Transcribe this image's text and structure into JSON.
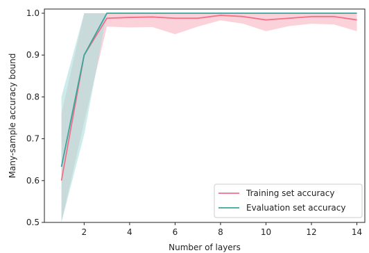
{
  "chart_data": {
    "type": "line",
    "xlabel": "Number of layers",
    "ylabel": "Many-sample accuracy bound",
    "xlim": [
      0.25,
      14.35
    ],
    "ylim": [
      0.5,
      1.01
    ],
    "xticks": [
      2,
      4,
      6,
      8,
      10,
      12,
      14
    ],
    "yticks": [
      0.5,
      0.6,
      0.7,
      0.8,
      0.9,
      1.0
    ],
    "xtick_labels": [
      "2",
      "4",
      "6",
      "8",
      "10",
      "12",
      "14"
    ],
    "ytick_labels": [
      "0.5",
      "0.6",
      "0.7",
      "0.8",
      "0.9",
      "1.0"
    ],
    "legend_position": "lower-right",
    "x": [
      1,
      2,
      3,
      4,
      5,
      6,
      7,
      8,
      9,
      10,
      11,
      12,
      13,
      14
    ],
    "series": [
      {
        "name": "Training set accuracy",
        "color": "#f07088",
        "band_color": "#f8b4c2",
        "values": [
          0.6,
          0.9,
          0.988,
          0.99,
          0.991,
          0.988,
          0.988,
          0.995,
          0.992,
          0.984,
          0.988,
          0.992,
          0.992,
          0.984
        ],
        "lower": [
          0.5,
          0.74,
          0.968,
          0.966,
          0.967,
          0.95,
          0.968,
          0.983,
          0.975,
          0.957,
          0.969,
          0.975,
          0.973,
          0.957
        ],
        "upper": [
          0.76,
          1.0,
          1.0,
          1.0,
          1.0,
          1.0,
          1.0,
          1.0,
          1.0,
          1.0,
          1.0,
          1.0,
          1.0,
          1.0
        ]
      },
      {
        "name": "Evaluation set accuracy",
        "color": "#3aa49e",
        "band_color": "#a9e0dc",
        "values": [
          0.633,
          0.9,
          1.0,
          1.0,
          1.0,
          1.0,
          1.0,
          1.0,
          1.0,
          1.0,
          1.0,
          1.0,
          1.0,
          1.0
        ],
        "lower": [
          0.5,
          0.71,
          1.0,
          1.0,
          1.0,
          1.0,
          1.0,
          1.0,
          1.0,
          1.0,
          1.0,
          1.0,
          1.0,
          1.0
        ],
        "upper": [
          0.8,
          1.0,
          1.0,
          1.0,
          1.0,
          1.0,
          1.0,
          1.0,
          1.0,
          1.0,
          1.0,
          1.0,
          1.0,
          1.0
        ]
      }
    ]
  }
}
